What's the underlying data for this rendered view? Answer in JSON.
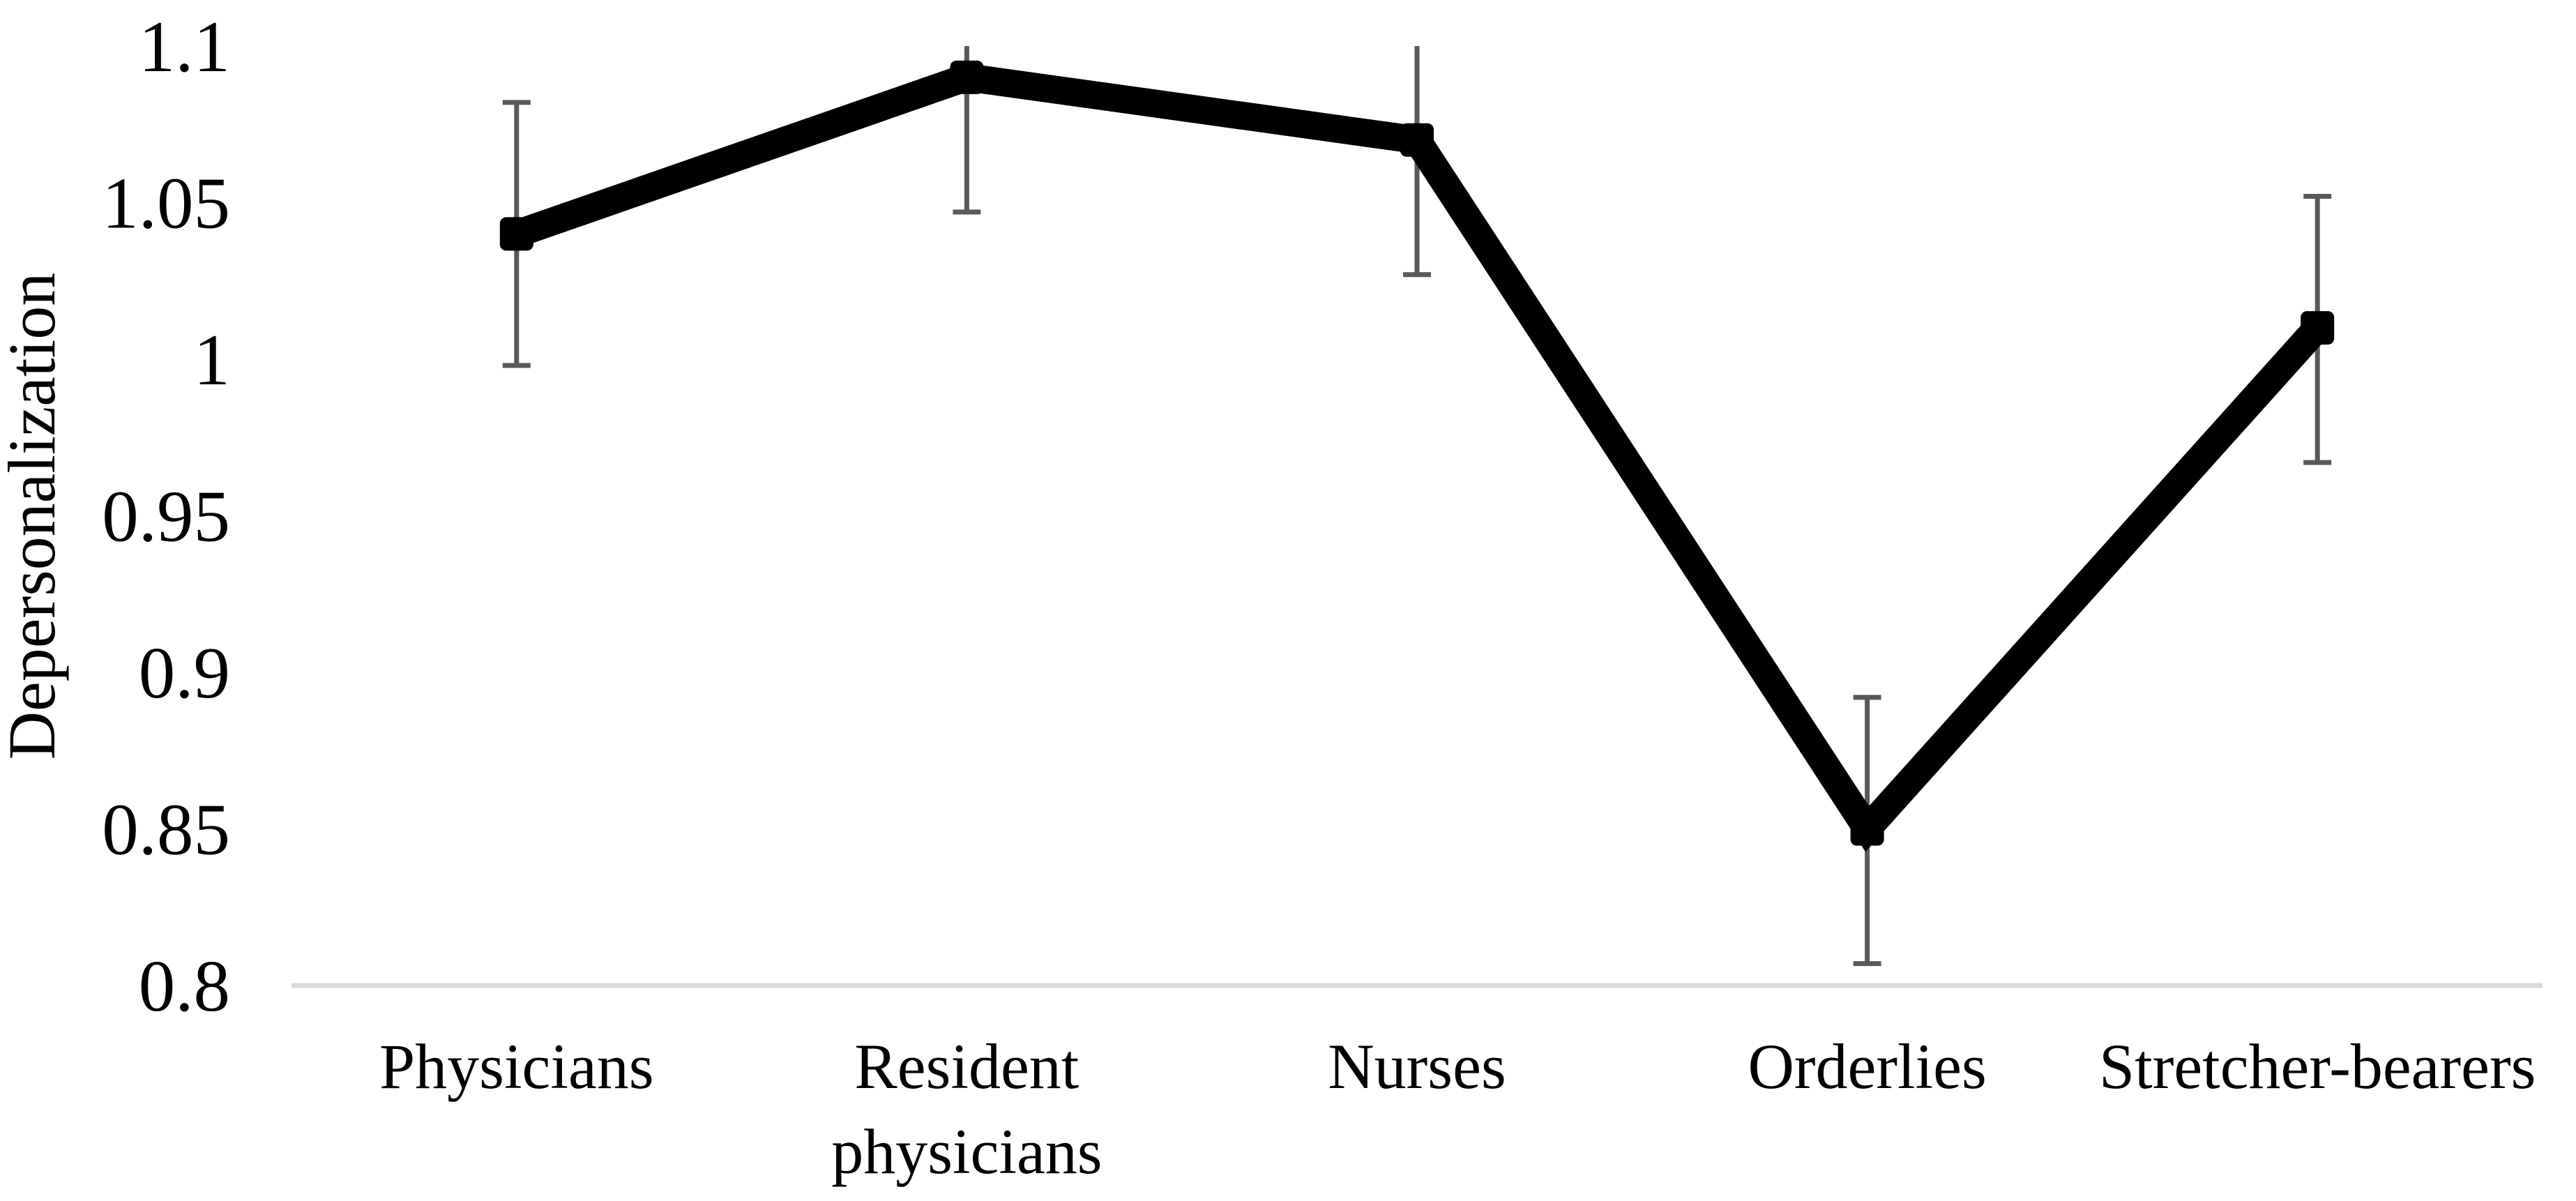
{
  "chart_data": {
    "type": "line",
    "title": "",
    "xlabel": "",
    "ylabel": "Depersonalization",
    "categories": [
      "Physicians",
      "Resident physicians",
      "Nurses",
      "Orderlies",
      "Stretcher-bearers"
    ],
    "category_label_lines": [
      [
        "Physicians"
      ],
      [
        "Resident",
        "physicians"
      ],
      [
        "Nurses"
      ],
      [
        "Orderlies"
      ],
      [
        "Stretcher-bearers"
      ]
    ],
    "series": [
      {
        "name": "Depersonalization",
        "values": [
          1.04,
          1.09,
          1.07,
          0.85,
          1.01
        ],
        "error_bars": {
          "lower": [
            0.998,
            1.047,
            1.027,
            0.807,
            0.967
          ],
          "upper": [
            1.082,
            1.1,
            1.1,
            0.892,
            1.052
          ],
          "upper_cap_visible": [
            true,
            false,
            false,
            true,
            true
          ],
          "lower_cap_visible": [
            true,
            true,
            true,
            true,
            true
          ]
        },
        "color": "#000000",
        "marker": "square"
      }
    ],
    "ylim": [
      0.8,
      1.1
    ],
    "yticks": [
      {
        "value": 1.1,
        "label": "1.1"
      },
      {
        "value": 1.05,
        "label": "1.05"
      },
      {
        "value": 1.0,
        "label": "1"
      },
      {
        "value": 0.95,
        "label": "0.95"
      },
      {
        "value": 0.9,
        "label": "0.9"
      },
      {
        "value": 0.85,
        "label": "0.85"
      },
      {
        "value": 0.8,
        "label": "0.8"
      }
    ],
    "grid": false,
    "legend_position": "none",
    "axis_baseline_color": "#d9d9d9",
    "error_bar_color": "#595959",
    "text_color": "#000000"
  }
}
